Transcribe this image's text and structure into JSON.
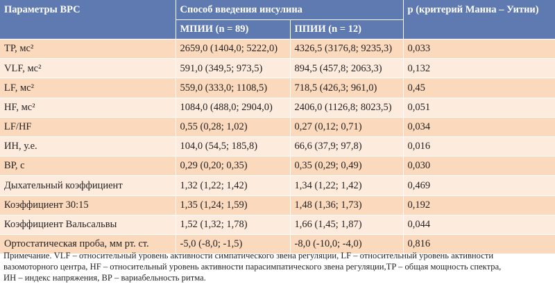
{
  "table": {
    "header": {
      "param_col": "Параметры ВРС",
      "method_group": "Способ введения инсулина",
      "mpii": "МПИИ (n = 89)",
      "ppii": "ППИИ (n = 12)",
      "p_col": "p (критерий Манна – Уитни)"
    },
    "rows": [
      {
        "param": "ТР, мс²",
        "mpii": "2659,0 (1404,0; 5222,0)",
        "ppii": "4326,5 (3176,8; 9235,3)",
        "p": "0,033"
      },
      {
        "param": "VLF, мс²",
        "mpii": "591,0 (349,5; 973,5)",
        "ppii": "894,5 (457,8; 2063,3)",
        "p": "0,132"
      },
      {
        "param": "LF, мс²",
        "mpii": "559,0 (333,0; 1108,5)",
        "ppii": "718,5 (426,3; 961,0)",
        "p": "0,45"
      },
      {
        "param": "HF, мс²",
        "mpii": "1084,0 (488,0; 2904,0)",
        "ppii": "2406,0 (1126,8; 8023,5)",
        "p": "0,051"
      },
      {
        "param": "LF/HF",
        "mpii": "0,55 (0,28; 1,02)",
        "ppii": "0,27 (0,12; 0,71)",
        "p": "0,034"
      },
      {
        "param": "ИН, у.е.",
        "mpii": "104,0 (54,5; 185,8)",
        "ppii": "66,6 (37,9; 97,8)",
        "p": "0,016"
      },
      {
        "param": "ВР, с",
        "mpii": "0,29 (0,20; 0,35)",
        "ppii": "0,35 (0,29; 0,49)",
        "p": "0,030"
      },
      {
        "param": "Дыхательный коэффициент",
        "mpii": "1,32 (1,22; 1,42)",
        "ppii": "1,34 (1,22; 1,42)",
        "p": "0,469"
      },
      {
        "param": "Коэффициент 30:15",
        "mpii": "1,35 (1,24; 1,59)",
        "ppii": "1,48 (1,36; 1,73)",
        "p": "0,192"
      },
      {
        "param": "Коэффициент Вальсальвы",
        "mpii": "1,52 (1,32; 1,78)",
        "ppii": "1,66 (1,45; 1,87)",
        "p": "0,044"
      },
      {
        "param": "Ортостатическая проба, мм рт. ст.",
        "mpii": "-5,0 (-8,0; -1,5)",
        "ppii": "-8,0 (-10,0; -4,0)",
        "p": "0,816"
      }
    ]
  },
  "note": {
    "line1": "Примечание. VLF – относительный уровень активности симпатического звена регуляции, LF – относительный уровень активности",
    "line2": "вазомоторного центра, HF – относительный уровень активности парасимпатического звена регуляции,TP – общая мощность спектра,",
    "line3": "ИН – индекс напряжения, ВР – вариабельность ритма."
  },
  "colors": {
    "header_bg": "#5f7ab1",
    "row_odd": "#fad9bd",
    "row_even": "#fdecde",
    "text": "#231f20"
  }
}
